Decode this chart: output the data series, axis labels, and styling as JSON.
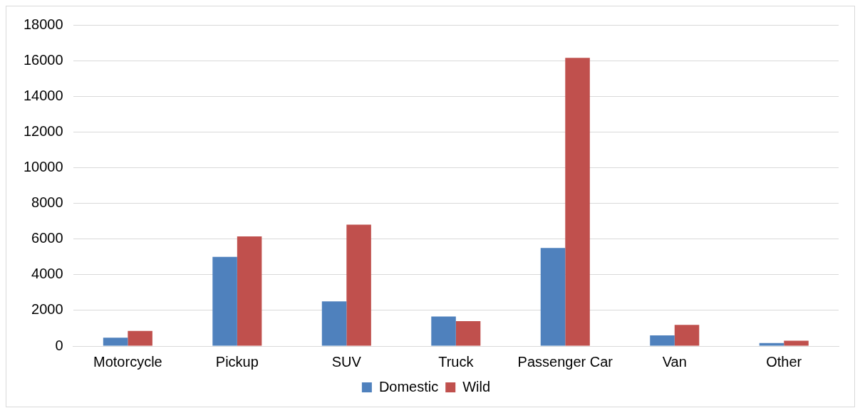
{
  "chart_data": {
    "type": "bar",
    "categories": [
      "Motorcycle",
      "Pickup",
      "SUV",
      "Truck",
      "Passenger Car",
      "Van",
      "Other"
    ],
    "series": [
      {
        "name": "Domestic",
        "color": "#4f81bd",
        "values": [
          470,
          5000,
          2500,
          1660,
          5500,
          600,
          170
        ]
      },
      {
        "name": "Wild",
        "color": "#c0504d",
        "values": [
          850,
          6150,
          6800,
          1400,
          16150,
          1190,
          300
        ]
      }
    ],
    "ylim": [
      0,
      18000
    ],
    "yticks": [
      0,
      2000,
      4000,
      6000,
      8000,
      10000,
      12000,
      14000,
      16000,
      18000
    ],
    "grid": "y",
    "legend": "bottom"
  }
}
